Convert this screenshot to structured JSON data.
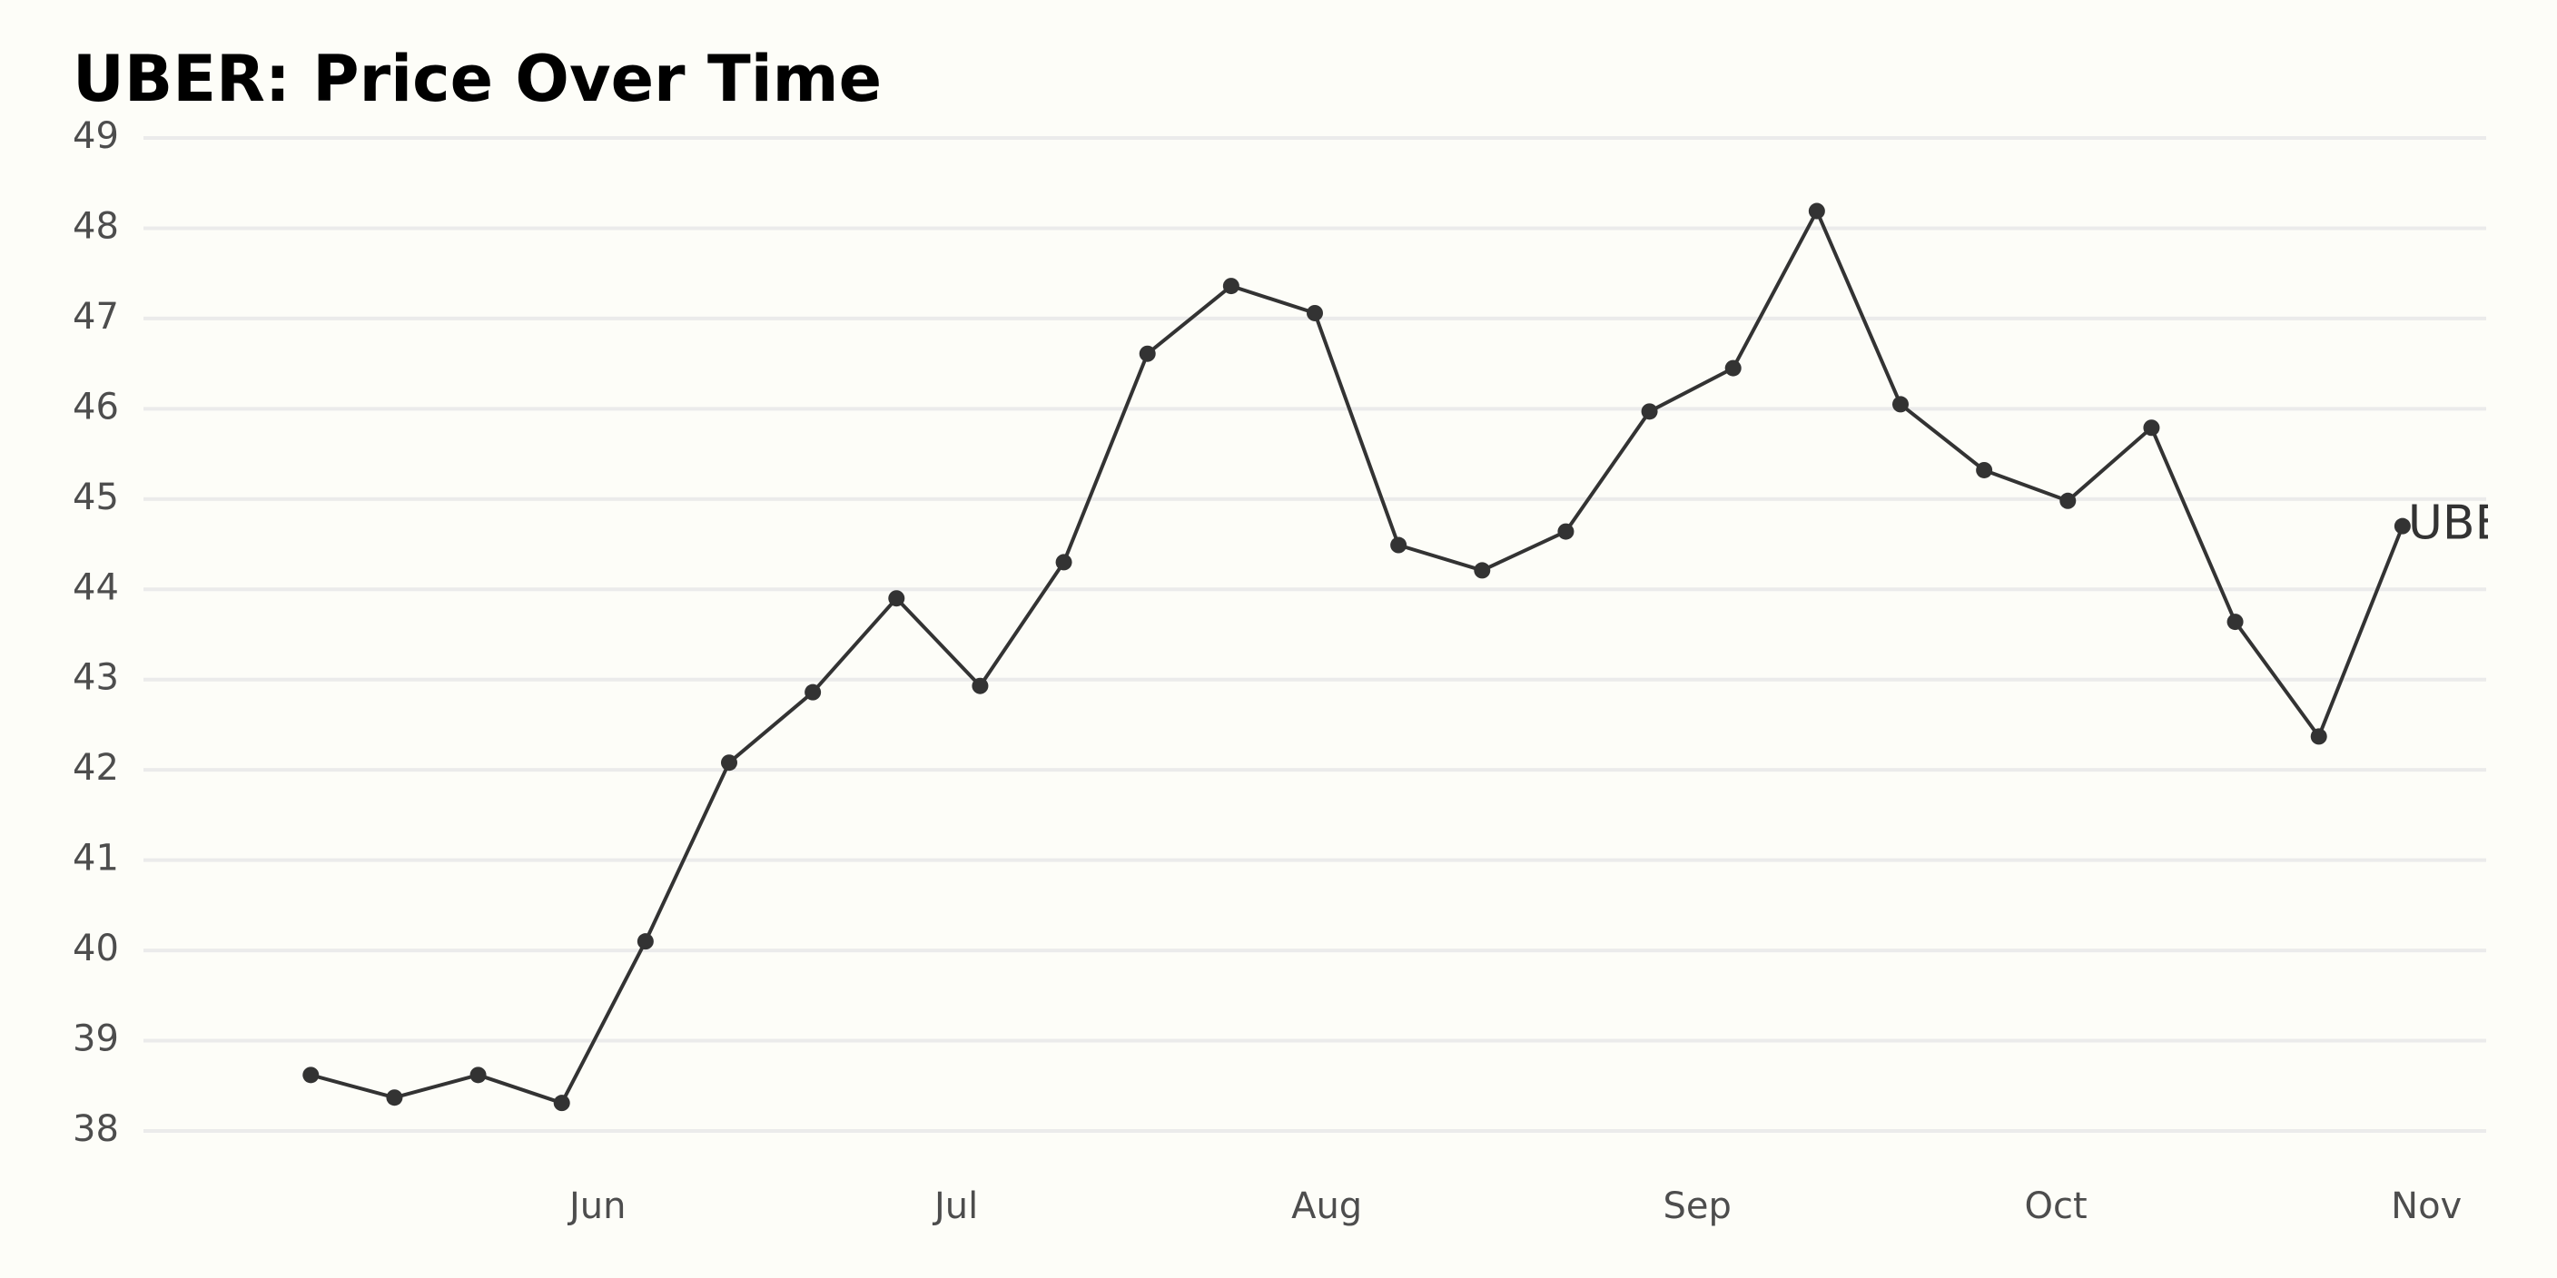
{
  "chart_data": {
    "type": "line",
    "title": "UBER: Price Over Time",
    "xlabel": "",
    "ylabel": "",
    "x": [
      "2023-05-08",
      "2023-05-15",
      "2023-05-22",
      "2023-05-29",
      "2023-06-05",
      "2023-06-12",
      "2023-06-19",
      "2023-06-26",
      "2023-07-03",
      "2023-07-10",
      "2023-07-17",
      "2023-07-24",
      "2023-07-31",
      "2023-08-07",
      "2023-08-14",
      "2023-08-21",
      "2023-08-28",
      "2023-09-04",
      "2023-09-11",
      "2023-09-18",
      "2023-09-25",
      "2023-10-02",
      "2023-10-09",
      "2023-10-16",
      "2023-10-23",
      "2023-10-30"
    ],
    "series": [
      {
        "name": "UBER",
        "values": [
          38.62,
          38.37,
          38.62,
          38.31,
          40.1,
          42.08,
          42.86,
          43.9,
          42.93,
          44.3,
          46.61,
          47.36,
          47.06,
          44.49,
          44.21,
          44.64,
          45.97,
          46.45,
          48.19,
          46.05,
          45.32,
          44.98,
          45.79,
          43.64,
          42.37,
          44.7
        ],
        "color": "#333333"
      }
    ],
    "x_ticks": [
      {
        "date": "2023-06-01",
        "label": "Jun"
      },
      {
        "date": "2023-07-01",
        "label": "Jul"
      },
      {
        "date": "2023-08-01",
        "label": "Aug"
      },
      {
        "date": "2023-09-01",
        "label": "Sep"
      },
      {
        "date": "2023-10-01",
        "label": "Oct"
      },
      {
        "date": "2023-11-01",
        "label": "Nov"
      }
    ],
    "xlim": [
      "2023-04-24",
      "2023-11-06"
    ],
    "y_ticks": [
      38,
      39,
      40,
      41,
      42,
      43,
      44,
      45,
      46,
      47,
      48,
      49
    ],
    "ylim": [
      38,
      49
    ],
    "grid": "horizontal",
    "grid_color": "#ebebeb",
    "background_color": "#fdfdf8",
    "legend": "none",
    "series_end_label": "UBER"
  }
}
